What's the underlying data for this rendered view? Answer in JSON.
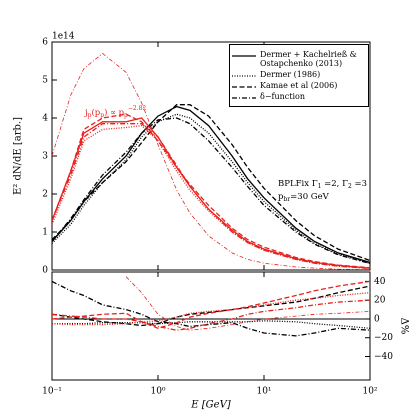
{
  "chart_data": [
    {
      "type": "line",
      "ylabel": "E² dN/dE [arb.]",
      "offset_label": "1e14",
      "xscale": "log",
      "xlim": [
        0.1,
        100
      ],
      "ylim": [
        0,
        6
      ],
      "yticks": [
        0,
        1,
        2,
        3,
        4,
        5,
        6
      ],
      "legend": "upper right",
      "x": [
        0.1,
        0.15,
        0.2,
        0.3,
        0.5,
        0.7,
        1,
        1.5,
        2,
        3,
        5,
        7,
        10,
        20,
        30,
        50,
        100
      ],
      "series": [
        {
          "name": "Dermer + Kachelrieß & Ostapchenko (2013)",
          "color": "#000000",
          "style": "solid",
          "values": [
            0.75,
            1.3,
            1.8,
            2.4,
            3.0,
            3.6,
            4.05,
            4.3,
            4.2,
            3.8,
            3.0,
            2.4,
            1.9,
            1.1,
            0.75,
            0.45,
            0.2
          ]
        },
        {
          "name": "Dermer (1986)",
          "color": "#000000",
          "style": "dotted",
          "values": [
            0.7,
            1.2,
            1.7,
            2.3,
            2.9,
            3.5,
            3.9,
            4.1,
            4.0,
            3.6,
            2.85,
            2.3,
            1.8,
            1.05,
            0.7,
            0.42,
            0.18
          ]
        },
        {
          "name": "Kamae et al (2006)",
          "color": "#000000",
          "style": "dashed",
          "values": [
            0.8,
            1.3,
            1.8,
            2.3,
            2.85,
            3.35,
            3.9,
            4.35,
            4.35,
            4.05,
            3.3,
            2.7,
            2.15,
            1.3,
            0.9,
            0.55,
            0.25
          ]
        },
        {
          "name": "δ−function",
          "color": "#000000",
          "style": "dashdot",
          "values": [
            0.75,
            1.35,
            1.85,
            2.5,
            3.1,
            3.6,
            3.95,
            4.0,
            3.85,
            3.4,
            2.7,
            2.2,
            1.7,
            1.0,
            0.68,
            0.4,
            0.17
          ]
        },
        {
          "color": "#e8211e",
          "style": "solid",
          "values": [
            1.3,
            2.6,
            3.6,
            3.9,
            3.9,
            4.0,
            3.5,
            2.7,
            2.2,
            1.6,
            1.05,
            0.75,
            0.55,
            0.3,
            0.2,
            0.12,
            0.05
          ]
        },
        {
          "color": "#e8211e",
          "style": "dotted",
          "values": [
            1.2,
            2.4,
            3.4,
            3.7,
            3.75,
            3.8,
            3.4,
            2.6,
            2.1,
            1.55,
            1.0,
            0.72,
            0.52,
            0.28,
            0.18,
            0.1,
            0.04
          ]
        },
        {
          "color": "#e8211e",
          "style": "dashed",
          "values": [
            1.3,
            2.6,
            3.7,
            4.0,
            4.1,
            3.9,
            3.4,
            2.7,
            2.25,
            1.7,
            1.1,
            0.8,
            0.6,
            0.33,
            0.22,
            0.13,
            0.06
          ]
        },
        {
          "color": "#e8211e",
          "style": "dashdot",
          "values": [
            1.3,
            2.5,
            3.5,
            3.85,
            3.85,
            3.85,
            3.5,
            2.75,
            2.2,
            1.6,
            1.0,
            0.72,
            0.52,
            0.28,
            0.18,
            0.1,
            0.04
          ]
        },
        {
          "color": "#e8211e",
          "style": "thin-dashdot",
          "values": [
            3.0,
            4.6,
            5.3,
            5.7,
            5.2,
            4.4,
            3.3,
            2.1,
            1.5,
            0.9,
            0.45,
            0.28,
            0.18,
            0.08,
            0.05,
            0.02,
            0.01
          ]
        }
      ],
      "annotations": [
        {
          "color": "#e8211e",
          "parts": [
            "j",
            "p",
            "(p",
            "p",
            ") ∝ p",
            "p",
            "−2.82"
          ],
          "shifts": [
            "",
            "sub",
            "",
            "sub",
            "",
            "sub",
            "super"
          ]
        },
        {
          "color": "#000000",
          "parts": [
            "BPLFix Γ",
            "1",
            " =2, Γ",
            "2",
            " =3"
          ],
          "shifts": [
            "",
            "sub",
            "",
            "sub",
            ""
          ]
        },
        {
          "color": "#000000",
          "parts": [
            "p",
            "br",
            "=30 GeV"
          ],
          "shifts": [
            "",
            "sub",
            ""
          ]
        }
      ]
    },
    {
      "type": "line",
      "xlabel": "E [GeV]",
      "y2label": "Δ%",
      "xscale": "log",
      "xlim": [
        0.1,
        100
      ],
      "xticks": [
        {
          "value": 0.1,
          "label": "10⁻¹"
        },
        {
          "value": 1,
          "label": "10⁰"
        },
        {
          "value": 10,
          "label": "10¹"
        },
        {
          "value": 100,
          "label": "10²"
        }
      ],
      "y2lim": [
        -65,
        50
      ],
      "y2ticks": [
        40,
        20,
        0,
        {
          "value": -20,
          "label": "−20"
        },
        {
          "value": -40,
          "label": "−40"
        }
      ],
      "zero_line": true,
      "x": [
        0.1,
        0.15,
        0.2,
        0.3,
        0.5,
        0.7,
        1,
        1.5,
        2,
        3,
        5,
        7,
        10,
        20,
        30,
        50,
        100
      ],
      "series": [
        {
          "color": "#000000",
          "style": "dotted",
          "axis": "y2",
          "values": [
            -5,
            -5,
            -5,
            -4,
            -4,
            -4,
            -5,
            -4,
            -3,
            -3,
            -3,
            -3,
            -2,
            -3,
            -5,
            -7,
            -10
          ]
        },
        {
          "color": "#000000",
          "style": "dashed",
          "axis": "y2",
          "values": [
            5,
            2,
            0,
            -3,
            -5,
            -7,
            -5,
            2,
            5,
            7,
            10,
            12,
            14,
            18,
            22,
            28,
            35
          ]
        },
        {
          "color": "#000000",
          "style": "dashdot",
          "axis": "y2",
          "values": [
            40,
            30,
            25,
            15,
            10,
            5,
            -3,
            -5,
            -8,
            -6,
            -4,
            -10,
            -15,
            -18,
            -15,
            -10,
            -12
          ]
        },
        {
          "color": "#e8211e",
          "style": "dotted",
          "axis": "y2",
          "values": [
            -5,
            -6,
            -6,
            -6,
            -5,
            -3,
            -2,
            2,
            6,
            8,
            10,
            12,
            15,
            20,
            22,
            25,
            28
          ]
        },
        {
          "color": "#e8211e",
          "style": "dashed",
          "axis": "y2",
          "values": [
            0,
            2,
            3,
            5,
            6,
            -3,
            -10,
            -4,
            2,
            6,
            10,
            13,
            17,
            25,
            30,
            35,
            40
          ]
        },
        {
          "color": "#e8211e",
          "style": "dashdot",
          "axis": "y2",
          "values": [
            5,
            3,
            2,
            0,
            0,
            -3,
            -8,
            -12,
            -10,
            -5,
            0,
            5,
            8,
            12,
            15,
            18,
            20
          ]
        },
        {
          "color": "#e8211e",
          "style": "thin-dashdot",
          "axis": "y2",
          "values": [
            null,
            null,
            null,
            null,
            45,
            28,
            5,
            -8,
            -12,
            -10,
            -6,
            -3,
            0,
            3,
            5,
            6,
            8
          ]
        }
      ]
    }
  ]
}
